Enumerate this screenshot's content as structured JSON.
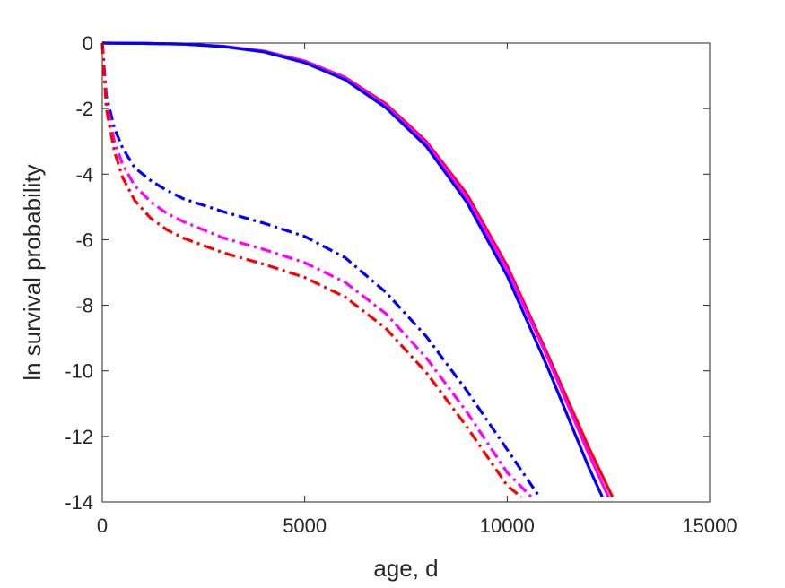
{
  "chart_data": {
    "type": "line",
    "title": "",
    "xlabel": "age, d",
    "ylabel": "ln survival probability",
    "xlim": [
      0,
      15000
    ],
    "ylim": [
      -14,
      0
    ],
    "xticks": [
      0,
      5000,
      10000,
      15000
    ],
    "xtick_labels": [
      "0",
      "5000",
      "10000",
      "15000"
    ],
    "yticks": [
      0,
      -2,
      -4,
      -6,
      -8,
      -10,
      -12,
      -14
    ],
    "ytick_labels": [
      "0",
      "-2",
      "-4",
      "-6",
      "-8",
      "-10",
      "-12",
      "-14"
    ],
    "grid": false,
    "legend": "none",
    "series": [
      {
        "color": "#ff0000",
        "style": "solid",
        "points": [
          [
            0,
            0
          ],
          [
            1000,
            -0.01
          ],
          [
            2000,
            -0.03
          ],
          [
            3000,
            -0.1
          ],
          [
            4000,
            -0.25
          ],
          [
            5000,
            -0.55
          ],
          [
            6000,
            -1.05
          ],
          [
            7000,
            -1.85
          ],
          [
            8000,
            -3.0
          ],
          [
            9000,
            -4.6
          ],
          [
            10000,
            -6.8
          ],
          [
            11000,
            -9.5
          ],
          [
            12000,
            -12.3
          ],
          [
            12600,
            -13.85
          ]
        ]
      },
      {
        "color": "#ff00ff",
        "style": "solid",
        "points": [
          [
            0,
            0
          ],
          [
            1000,
            -0.01
          ],
          [
            2000,
            -0.03
          ],
          [
            3000,
            -0.1
          ],
          [
            4000,
            -0.25
          ],
          [
            5000,
            -0.56
          ],
          [
            6000,
            -1.07
          ],
          [
            7000,
            -1.9
          ],
          [
            8000,
            -3.05
          ],
          [
            9000,
            -4.7
          ],
          [
            10000,
            -6.9
          ],
          [
            11000,
            -9.6
          ],
          [
            12000,
            -12.5
          ],
          [
            12500,
            -13.85
          ]
        ]
      },
      {
        "color": "#0000ff",
        "style": "solid",
        "points": [
          [
            0,
            0
          ],
          [
            1000,
            -0.01
          ],
          [
            2000,
            -0.03
          ],
          [
            3000,
            -0.11
          ],
          [
            4000,
            -0.27
          ],
          [
            5000,
            -0.6
          ],
          [
            6000,
            -1.12
          ],
          [
            7000,
            -1.97
          ],
          [
            8000,
            -3.15
          ],
          [
            9000,
            -4.85
          ],
          [
            10000,
            -7.1
          ],
          [
            11000,
            -9.9
          ],
          [
            12000,
            -12.9
          ],
          [
            12350,
            -13.85
          ]
        ]
      },
      {
        "color": "#0000ff",
        "style": "dashdot",
        "points": [
          [
            0,
            0
          ],
          [
            100,
            -1.6
          ],
          [
            300,
            -2.6
          ],
          [
            500,
            -3.2
          ],
          [
            800,
            -3.8
          ],
          [
            1200,
            -4.2
          ],
          [
            1600,
            -4.5
          ],
          [
            2000,
            -4.75
          ],
          [
            3000,
            -5.15
          ],
          [
            4000,
            -5.5
          ],
          [
            5000,
            -5.9
          ],
          [
            6000,
            -6.55
          ],
          [
            7000,
            -7.6
          ],
          [
            8000,
            -8.95
          ],
          [
            9000,
            -10.6
          ],
          [
            10000,
            -12.4
          ],
          [
            10800,
            -13.85
          ]
        ]
      },
      {
        "color": "#ff00ff",
        "style": "dashdot",
        "points": [
          [
            0,
            0
          ],
          [
            100,
            -1.8
          ],
          [
            300,
            -3.0
          ],
          [
            500,
            -3.7
          ],
          [
            800,
            -4.35
          ],
          [
            1200,
            -4.85
          ],
          [
            1600,
            -5.2
          ],
          [
            2000,
            -5.45
          ],
          [
            3000,
            -5.95
          ],
          [
            4000,
            -6.3
          ],
          [
            5000,
            -6.7
          ],
          [
            6000,
            -7.3
          ],
          [
            7000,
            -8.25
          ],
          [
            8000,
            -9.6
          ],
          [
            9000,
            -11.25
          ],
          [
            10000,
            -13.1
          ],
          [
            10600,
            -13.85
          ]
        ]
      },
      {
        "color": "#ff0000",
        "style": "dashdot",
        "points": [
          [
            0,
            0
          ],
          [
            100,
            -2.0
          ],
          [
            300,
            -3.3
          ],
          [
            500,
            -4.1
          ],
          [
            800,
            -4.8
          ],
          [
            1200,
            -5.35
          ],
          [
            1600,
            -5.7
          ],
          [
            2000,
            -5.95
          ],
          [
            3000,
            -6.4
          ],
          [
            4000,
            -6.75
          ],
          [
            5000,
            -7.15
          ],
          [
            6000,
            -7.75
          ],
          [
            7000,
            -8.7
          ],
          [
            8000,
            -10.05
          ],
          [
            9000,
            -11.7
          ],
          [
            10000,
            -13.5
          ],
          [
            10350,
            -13.85
          ]
        ]
      }
    ]
  }
}
